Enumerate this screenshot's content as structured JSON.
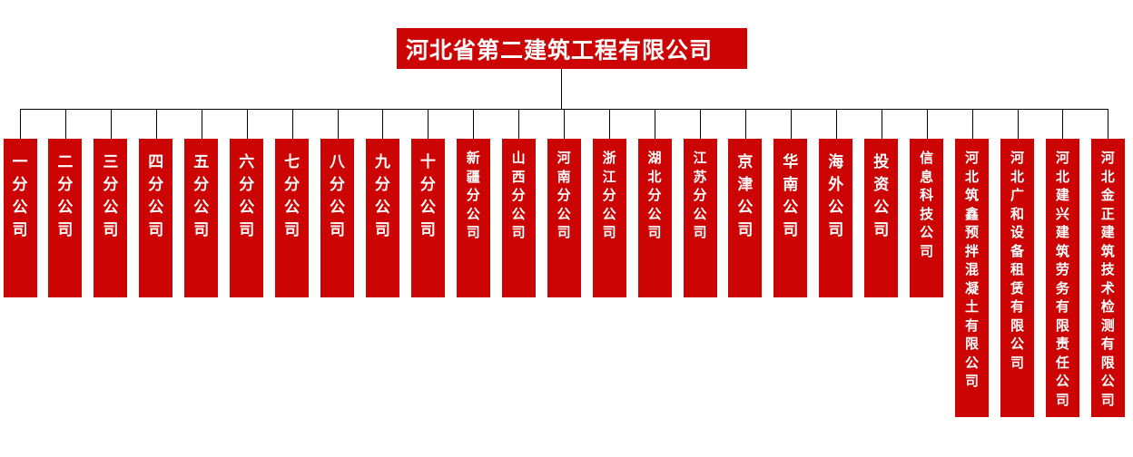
{
  "org": {
    "root": "河北省第二建筑工程有限公司",
    "children": [
      "一分公司",
      "二分公司",
      "三分公司",
      "四分公司",
      "五分公司",
      "六分公司",
      "七分公司",
      "八分公司",
      "九分公司",
      "十分公司",
      "新疆分公司",
      "山西分公司",
      "河南分公司",
      "浙江分公司",
      "湖北分公司",
      "江苏分公司",
      "京津公司",
      "华南公司",
      "海外公司",
      "投资公司",
      "信息科技公司",
      "河北筑鑫预拌混凝土有限公司",
      "河北广和设备租赁有限公司",
      "河北建兴建筑劳务有限责任公司",
      "河北金正建筑技术检测有限公司"
    ]
  },
  "colors": {
    "box_red": "#cc0404",
    "text_white": "#ffffff",
    "connector_black": "#000000",
    "background": "#ffffff"
  }
}
